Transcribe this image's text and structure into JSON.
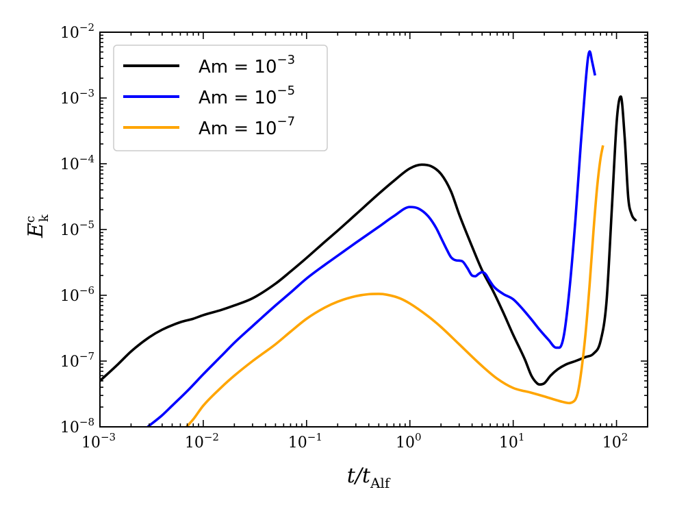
{
  "chart_data": {
    "type": "line",
    "title": "",
    "xscale": "log",
    "yscale": "log",
    "xlim": [
      0.001,
      200
    ],
    "ylim": [
      1e-08,
      0.01
    ],
    "xlabel": {
      "base": "t/t",
      "sub": "Alf"
    },
    "ylabel": {
      "base": "E",
      "sub": "k",
      "sup": "c"
    },
    "grid": false,
    "legend_position": "top-left",
    "x_ticks": [
      {
        "value": 0.001,
        "base": "10",
        "exp": "−3"
      },
      {
        "value": 0.01,
        "base": "10",
        "exp": "−2"
      },
      {
        "value": 0.1,
        "base": "10",
        "exp": "−1"
      },
      {
        "value": 1,
        "base": "10",
        "exp": "0"
      },
      {
        "value": 10,
        "base": "10",
        "exp": "1"
      },
      {
        "value": 100,
        "base": "10",
        "exp": "2"
      }
    ],
    "y_ticks": [
      {
        "value": 1e-08,
        "base": "10",
        "exp": "−8"
      },
      {
        "value": 1e-07,
        "base": "10",
        "exp": "−7"
      },
      {
        "value": 1e-06,
        "base": "10",
        "exp": "−6"
      },
      {
        "value": 1e-05,
        "base": "10",
        "exp": "−5"
      },
      {
        "value": 0.0001,
        "base": "10",
        "exp": "−4"
      },
      {
        "value": 0.001,
        "base": "10",
        "exp": "−3"
      },
      {
        "value": 0.01,
        "base": "10",
        "exp": "−2"
      }
    ],
    "series": [
      {
        "name": "Am = 10^-3",
        "label_main": "Am = 10",
        "label_exp": "−3",
        "color": "#000000",
        "x": [
          0.001,
          0.0015,
          0.002,
          0.003,
          0.004,
          0.006,
          0.008,
          0.01,
          0.015,
          0.02,
          0.03,
          0.05,
          0.07,
          0.1,
          0.15,
          0.2,
          0.3,
          0.5,
          0.7,
          1.0,
          1.3,
          1.6,
          2.0,
          2.5,
          3.0,
          4.0,
          5.0,
          6.5,
          8.0,
          10,
          13,
          15,
          17,
          18,
          20,
          23,
          27,
          32,
          40,
          50,
          60,
          70,
          80,
          90,
          100,
          105,
          110,
          120,
          130,
          140,
          155
        ],
        "y": [
          5e-08,
          9e-08,
          1.4e-07,
          2.3e-07,
          3e-07,
          3.9e-07,
          4.4e-07,
          5e-07,
          6e-07,
          7e-07,
          9e-07,
          1.5e-06,
          2.3e-06,
          3.7e-06,
          6.5e-06,
          9.6e-06,
          1.7e-05,
          3.5e-05,
          5.5e-05,
          8.5e-05,
          9.7e-05,
          9.2e-05,
          7e-05,
          3.8e-05,
          1.7e-05,
          5.5e-06,
          2.4e-06,
          1.1e-06,
          5.5e-07,
          2.5e-07,
          1.05e-07,
          6e-08,
          4.6e-08,
          4.4e-08,
          4.6e-08,
          6e-08,
          7.5e-08,
          8.8e-08,
          1e-07,
          1.15e-07,
          1.3e-07,
          2e-07,
          8e-07,
          2e-05,
          0.0004,
          0.00085,
          0.00105,
          0.00025,
          3e-05,
          1.7e-05,
          1.35e-05
        ]
      },
      {
        "name": "Am = 10^-5",
        "label_main": "Am = 10",
        "label_exp": "−5",
        "color": "#0000ff",
        "x": [
          0.0029,
          0.004,
          0.005,
          0.007,
          0.01,
          0.015,
          0.02,
          0.03,
          0.05,
          0.07,
          0.1,
          0.15,
          0.2,
          0.3,
          0.5,
          0.7,
          1.0,
          1.2,
          1.5,
          1.8,
          2.0,
          2.3,
          2.5,
          2.8,
          3.2,
          3.6,
          4.0,
          4.3,
          4.6,
          5.0,
          5.4,
          5.8,
          6.5,
          8.0,
          10,
          12,
          15,
          18,
          22,
          26,
          28,
          31,
          35,
          40,
          45,
          50,
          53,
          55,
          58,
          62
        ],
        "y": [
          1e-08,
          1.5e-08,
          2.1e-08,
          3.5e-08,
          6.3e-08,
          1.2e-07,
          1.9e-07,
          3.4e-07,
          7e-07,
          1.1e-06,
          1.8e-06,
          2.9e-06,
          4e-06,
          6.3e-06,
          1.1e-05,
          1.6e-05,
          2.2e-05,
          2.1e-05,
          1.6e-05,
          1.05e-05,
          7.5e-06,
          4.8e-06,
          3.8e-06,
          3.4e-06,
          3.3e-06,
          2.6e-06,
          2e-06,
          1.95e-06,
          2.1e-06,
          2.25e-06,
          2.1e-06,
          1.75e-06,
          1.35e-06,
          1.05e-06,
          8.7e-07,
          6.5e-07,
          4.3e-07,
          3e-07,
          2.1e-07,
          1.6e-07,
          1.6e-07,
          2.5e-07,
          1.2e-06,
          1.4e-05,
          0.00019,
          0.0016,
          0.0041,
          0.0051,
          0.0036,
          0.0022
        ]
      },
      {
        "name": "Am = 10^-7",
        "label_main": "Am = 10",
        "label_exp": "−7",
        "color": "#ffa500",
        "x": [
          0.0069,
          0.008,
          0.01,
          0.015,
          0.02,
          0.03,
          0.05,
          0.07,
          0.1,
          0.15,
          0.2,
          0.3,
          0.4,
          0.5,
          0.6,
          0.8,
          1.0,
          1.5,
          2.0,
          3.0,
          5.0,
          7.0,
          10,
          15,
          20,
          25,
          30,
          35,
          38,
          40,
          42,
          45,
          50,
          55,
          60,
          65,
          70,
          74
        ],
        "y": [
          1e-08,
          1.3e-08,
          2.1e-08,
          4e-08,
          6e-08,
          1e-07,
          1.8e-07,
          2.8e-07,
          4.4e-07,
          6.5e-07,
          8e-07,
          9.7e-07,
          1.04e-06,
          1.05e-06,
          1.02e-06,
          9e-07,
          7.5e-07,
          4.8e-07,
          3.3e-07,
          1.8e-07,
          8.4e-08,
          5.4e-08,
          3.9e-08,
          3.3e-08,
          2.9e-08,
          2.6e-08,
          2.4e-08,
          2.3e-08,
          2.4e-08,
          2.6e-08,
          3.2e-08,
          6e-08,
          2.5e-07,
          1.5e-06,
          1e-05,
          4.5e-05,
          0.00012,
          0.00019
        ]
      }
    ]
  }
}
